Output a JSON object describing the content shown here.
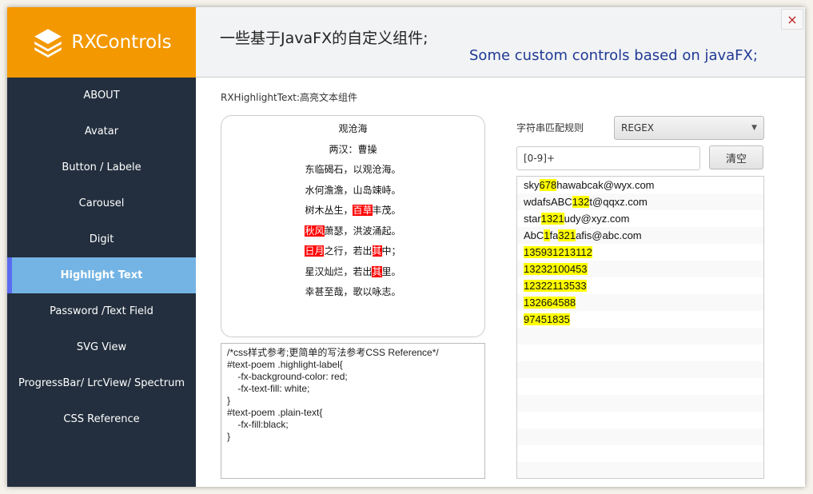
{
  "app": {
    "logo_text": "RXControls",
    "close_icon": "×"
  },
  "header": {
    "title_cn": "一些基于JavaFX的自定义组件;",
    "title_en": "Some custom controls based on javaFX;"
  },
  "sidebar": {
    "items": [
      {
        "label": "ABOUT"
      },
      {
        "label": "Avatar"
      },
      {
        "label": "Button / Labele"
      },
      {
        "label": "Carousel"
      },
      {
        "label": "Digit"
      },
      {
        "label": "Highlight Text",
        "active": true
      },
      {
        "label": "Password /Text Field"
      },
      {
        "label": "SVG View"
      },
      {
        "label": "ProgressBar/ LrcView/ Spectrum"
      },
      {
        "label": "CSS Reference"
      }
    ]
  },
  "main": {
    "subtitle": "RXHighlightText:高亮文本组件",
    "poem": [
      [
        {
          "t": "观沧海"
        }
      ],
      [
        {
          "t": "两汉：曹操"
        }
      ],
      [
        {
          "t": "东临碣石，以观沧海。"
        }
      ],
      [
        {
          "t": "水何澹澹，山岛竦峙。"
        }
      ],
      [
        {
          "t": "树木丛生，"
        },
        {
          "t": "百草",
          "hl": true
        },
        {
          "t": "丰茂。"
        }
      ],
      [
        {
          "t": "秋风",
          "hl": true
        },
        {
          "t": "萧瑟，洪波涌起。"
        }
      ],
      [
        {
          "t": "日月",
          "hl": true
        },
        {
          "t": "之行，若出"
        },
        {
          "t": "其",
          "hl": true
        },
        {
          "t": "中；"
        }
      ],
      [
        {
          "t": "星汉灿烂，若出"
        },
        {
          "t": "其",
          "hl": true
        },
        {
          "t": "里。"
        }
      ],
      [
        {
          "t": "幸甚至哉，歌以咏志。"
        }
      ]
    ],
    "css_text": "/*css样式参考;更简单的写法参考CSS Reference*/\n#text-poem .highlight-label{\n    -fx-background-color: red;\n    -fx-text-fill: white;\n}\n#text-poem .plain-text{\n    -fx-fill:black;\n}",
    "rule_label": "字符串匹配规则",
    "rule_value": "REGEX",
    "pattern_value": "[0-9]+",
    "clear_label": "清空",
    "items": [
      [
        {
          "t": "sky"
        },
        {
          "t": "678",
          "hl": true
        },
        {
          "t": "hawabcak@wyx.com"
        }
      ],
      [
        {
          "t": "wdafsABC"
        },
        {
          "t": "132",
          "hl": true
        },
        {
          "t": "t@qqxz.com"
        }
      ],
      [
        {
          "t": "star"
        },
        {
          "t": "1321",
          "hl": true
        },
        {
          "t": "udy@xyz.com"
        }
      ],
      [
        {
          "t": "AbC"
        },
        {
          "t": "1",
          "hl": true
        },
        {
          "t": "fa"
        },
        {
          "t": "321",
          "hl": true
        },
        {
          "t": "afis@abc.com"
        }
      ],
      [
        {
          "t": "135931213112",
          "hl": true
        }
      ],
      [
        {
          "t": "13232100453",
          "hl": true
        }
      ],
      [
        {
          "t": "12322113533",
          "hl": true
        }
      ],
      [
        {
          "t": "132664588",
          "hl": true
        }
      ],
      [
        {
          "t": "97451835",
          "hl": true
        }
      ]
    ]
  },
  "colors": {
    "brand": "#f39800",
    "sidebar": "#232f3e",
    "active": "#74b4e4",
    "poem_highlight": "#ff0000",
    "list_highlight": "#ffff00"
  }
}
